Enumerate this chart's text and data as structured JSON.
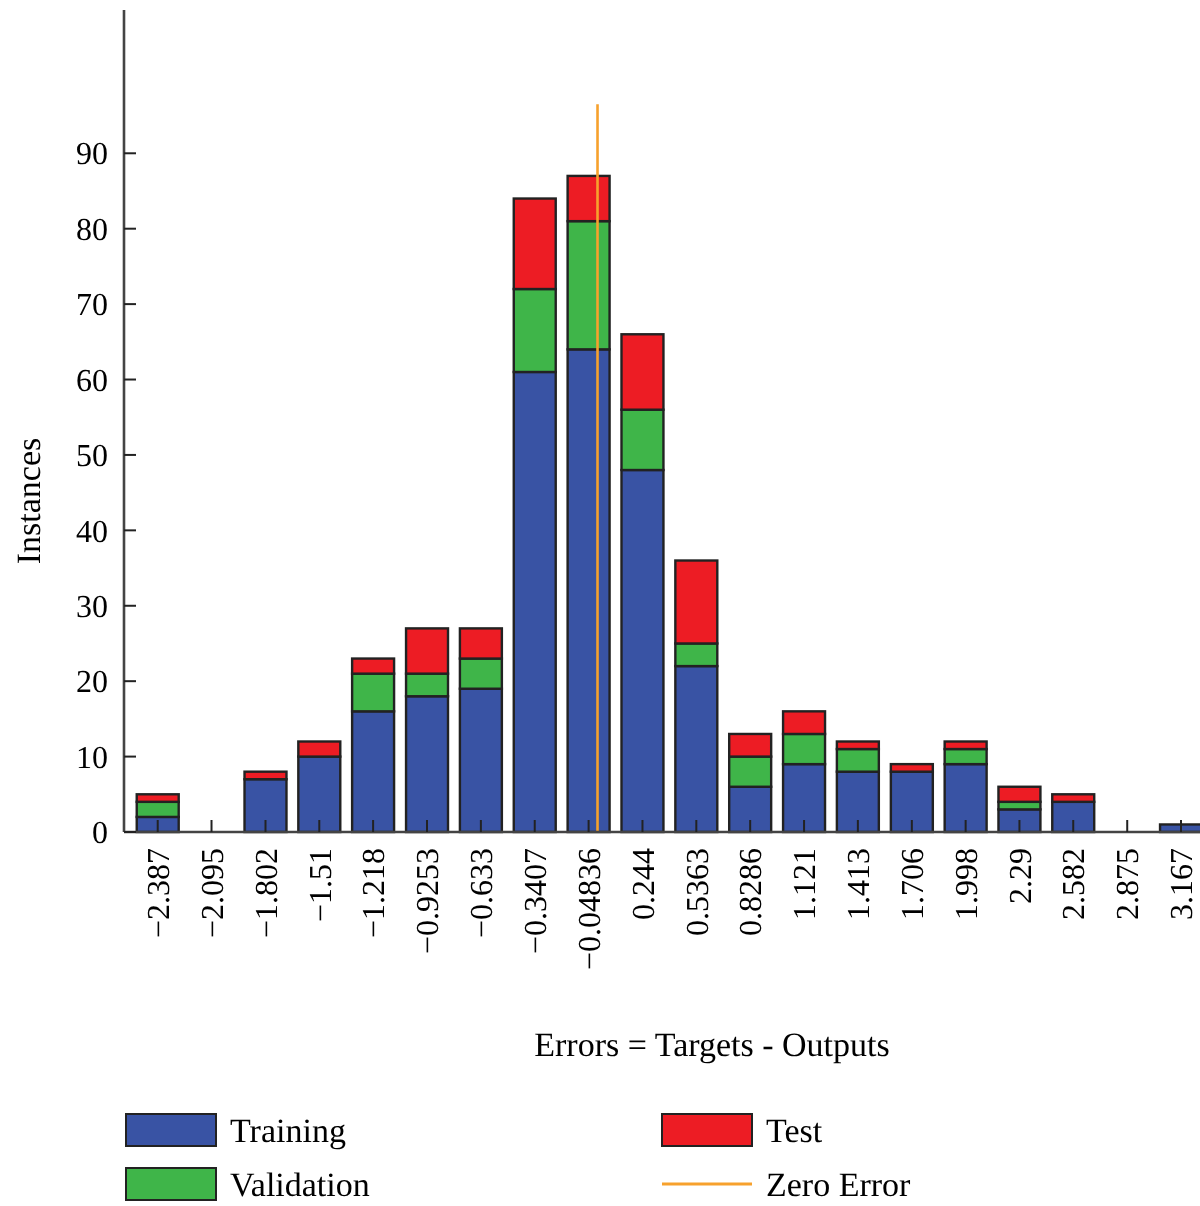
{
  "chart_data": {
    "type": "bar",
    "stacked": true,
    "xlabel": "Errors = Targets - Outputs",
    "ylabel": "Instances",
    "x": [
      -2.387,
      -2.095,
      -1.802,
      -1.51,
      -1.218,
      -0.9253,
      -0.633,
      -0.3407,
      -0.04836,
      0.244,
      0.5363,
      0.8286,
      1.121,
      1.413,
      1.706,
      1.998,
      2.29,
      2.582,
      2.875,
      3.167
    ],
    "series": [
      {
        "name": "Training",
        "color": "#3953a4",
        "values": [
          2,
          0,
          7,
          10,
          16,
          18,
          19,
          61,
          64,
          48,
          22,
          6,
          9,
          8,
          8,
          9,
          3,
          4,
          0,
          1
        ]
      },
      {
        "name": "Validation",
        "color": "#3fb549",
        "values": [
          2,
          0,
          0,
          0,
          5,
          3,
          4,
          11,
          17,
          8,
          3,
          4,
          4,
          3,
          0,
          2,
          1,
          0,
          0,
          0
        ]
      },
      {
        "name": "Test",
        "color": "#ed1c24",
        "values": [
          1,
          0,
          1,
          2,
          2,
          6,
          4,
          12,
          6,
          10,
          11,
          3,
          3,
          1,
          1,
          1,
          2,
          1,
          0,
          0
        ]
      }
    ],
    "xlim": [
      -2.57,
      3.27
    ],
    "ylim": [
      0,
      109
    ],
    "xticks": [
      {
        "value": -2.387,
        "label": "−2.387"
      },
      {
        "value": -2.095,
        "label": "−2.095"
      },
      {
        "value": -1.802,
        "label": "−1.802"
      },
      {
        "value": -1.51,
        "label": "−1.51"
      },
      {
        "value": -1.218,
        "label": "−1.218"
      },
      {
        "value": -0.9253,
        "label": "−0.9253"
      },
      {
        "value": -0.633,
        "label": "−0.633"
      },
      {
        "value": -0.3407,
        "label": "−0.3407"
      },
      {
        "value": -0.04836,
        "label": "−0.04836"
      },
      0.244,
      0.5363,
      0.8286,
      1.121,
      1.413,
      1.706,
      1.998,
      2.29,
      2.582,
      2.875,
      3.167
    ],
    "yticks": [
      0,
      10,
      20,
      30,
      40,
      50,
      60,
      70,
      80,
      90
    ],
    "ref_lines": [
      {
        "axis": "x",
        "value": 0,
        "label": "Zero Error",
        "color": "#f7a12d"
      }
    ],
    "grid": false,
    "legend": "bottom"
  }
}
